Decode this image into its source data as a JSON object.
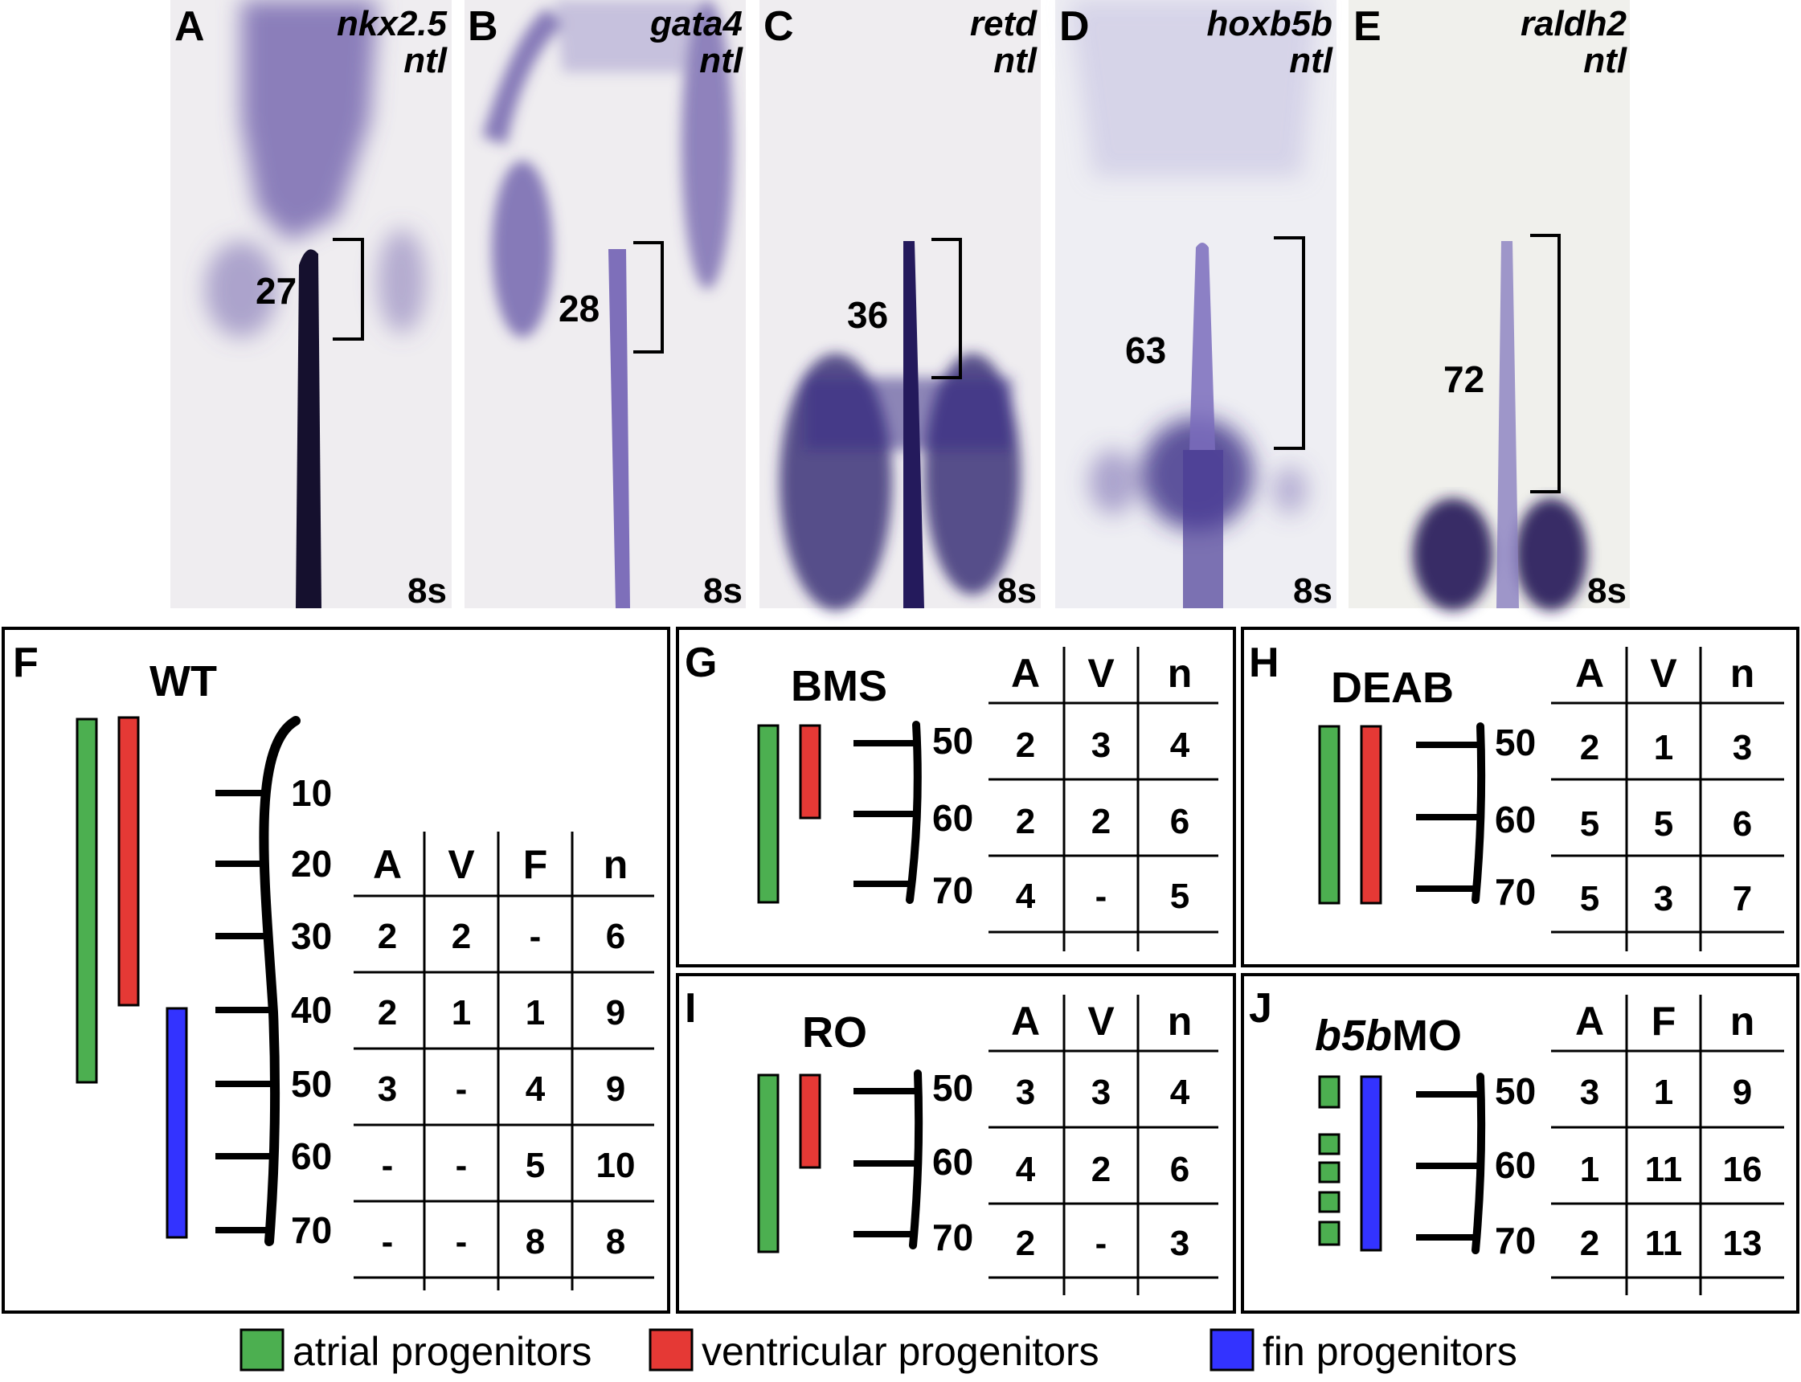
{
  "photo_panels": [
    {
      "label": "A",
      "gene": "nkx2.5",
      "gene2": "ntl",
      "count": "27",
      "stage": "8s"
    },
    {
      "label": "B",
      "gene": "gata4",
      "gene2": "ntl",
      "count": "28",
      "stage": "8s"
    },
    {
      "label": "C",
      "gene": "retd",
      "gene2": "ntl",
      "count": "36",
      "stage": "8s"
    },
    {
      "label": "D",
      "gene": "hoxb5b",
      "gene2": "ntl",
      "count": "63",
      "stage": "8s"
    },
    {
      "label": "E",
      "gene": "raldh2",
      "gene2": "ntl",
      "count": "72",
      "stage": "8s"
    }
  ],
  "panels": {
    "F": {
      "label": "F",
      "title": "WT",
      "ticks": [
        "10",
        "20",
        "30",
        "40",
        "50",
        "60",
        "70"
      ],
      "headers": [
        "A",
        "V",
        "F",
        "n"
      ],
      "rows": [
        [
          "2",
          "2",
          "-",
          "6"
        ],
        [
          "2",
          "1",
          "1",
          "9"
        ],
        [
          "3",
          "-",
          "4",
          "9"
        ],
        [
          "-",
          "-",
          "5",
          "10"
        ],
        [
          "-",
          "-",
          "8",
          "8"
        ]
      ]
    },
    "G": {
      "label": "G",
      "title": "BMS",
      "ticks": [
        "50",
        "60",
        "70"
      ],
      "headers": [
        "A",
        "V",
        "n"
      ],
      "rows": [
        [
          "2",
          "3",
          "4"
        ],
        [
          "2",
          "2",
          "6"
        ],
        [
          "4",
          "-",
          "5"
        ]
      ]
    },
    "H": {
      "label": "H",
      "title": "DEAB",
      "ticks": [
        "50",
        "60",
        "70"
      ],
      "headers": [
        "A",
        "V",
        "n"
      ],
      "rows": [
        [
          "2",
          "1",
          "3"
        ],
        [
          "5",
          "5",
          "6"
        ],
        [
          "5",
          "3",
          "7"
        ]
      ]
    },
    "I": {
      "label": "I",
      "title": "RO",
      "ticks": [
        "50",
        "60",
        "70"
      ],
      "headers": [
        "A",
        "V",
        "n"
      ],
      "rows": [
        [
          "3",
          "3",
          "4"
        ],
        [
          "4",
          "2",
          "6"
        ],
        [
          "2",
          "-",
          "3"
        ]
      ]
    },
    "J": {
      "label": "J",
      "title_italic": "b5b",
      "title_rest": "MO",
      "ticks": [
        "50",
        "60",
        "70"
      ],
      "headers": [
        "A",
        "F",
        "n"
      ],
      "rows": [
        [
          "3",
          "1",
          "9"
        ],
        [
          "1",
          "11",
          "16"
        ],
        [
          "2",
          "11",
          "13"
        ]
      ]
    }
  },
  "legend": [
    {
      "label": "atrial progenitors",
      "color": "#4caf50"
    },
    {
      "label": "ventricular progenitors",
      "color": "#e53935"
    },
    {
      "label": "fin progenitors",
      "color": "#3333ff"
    }
  ],
  "colors": {
    "atrial": "#4caf50",
    "ventricular": "#e53935",
    "fin": "#3333ff",
    "stain": "#3a2d86"
  }
}
